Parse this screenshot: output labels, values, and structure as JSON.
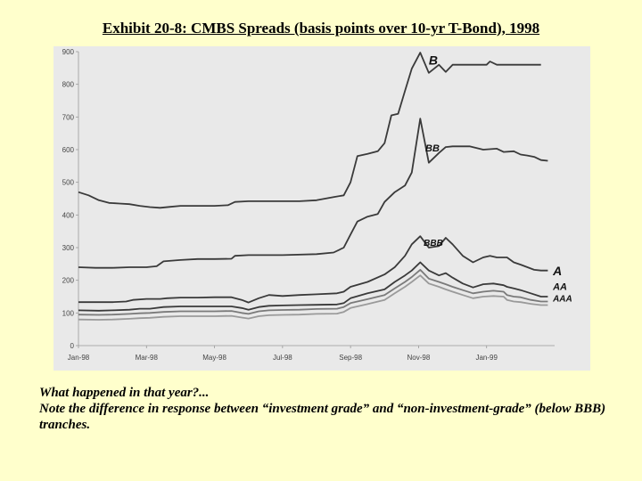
{
  "title": "Exhibit 20-8: CMBS Spreads (basis points over 10-yr T-Bond), 1998",
  "caption": {
    "line1": "What happened in that year?...",
    "line2": "Note the difference in response between “investment grade” and “non-investment-grade” (below BBB) tranches."
  },
  "chart_data": {
    "type": "line",
    "title": "",
    "xlabel": "",
    "ylabel": "",
    "ylim": [
      0,
      900
    ],
    "yticks": [
      0,
      100,
      200,
      300,
      400,
      500,
      600,
      700,
      800,
      900
    ],
    "xlim": [
      0,
      14
    ],
    "xticks": [
      {
        "label": "Jan-98",
        "x": 0
      },
      {
        "label": "Mar-98",
        "x": 2
      },
      {
        "label": "May-98",
        "x": 4
      },
      {
        "label": "Jul-98",
        "x": 6
      },
      {
        "label": "Sep-98",
        "x": 8
      },
      {
        "label": "Nov-98",
        "x": 10
      },
      {
        "label": "Jan-99",
        "x": 12
      }
    ],
    "series": [
      {
        "name": "B",
        "label_pos": [
          10.3,
          860
        ],
        "points": [
          [
            0,
            470
          ],
          [
            0.3,
            460
          ],
          [
            0.6,
            445
          ],
          [
            0.9,
            437
          ],
          [
            1.2,
            435
          ],
          [
            1.5,
            433
          ],
          [
            1.8,
            428
          ],
          [
            2.1,
            424
          ],
          [
            2.4,
            422
          ],
          [
            2.7,
            425
          ],
          [
            3.0,
            428
          ],
          [
            3.6,
            428
          ],
          [
            4.0,
            428
          ],
          [
            4.4,
            430
          ],
          [
            4.6,
            440
          ],
          [
            5.0,
            442
          ],
          [
            5.5,
            442
          ],
          [
            6.0,
            442
          ],
          [
            6.5,
            442
          ],
          [
            7.0,
            445
          ],
          [
            7.5,
            455
          ],
          [
            7.8,
            460
          ],
          [
            8.0,
            500
          ],
          [
            8.2,
            580
          ],
          [
            8.5,
            587
          ],
          [
            8.8,
            595
          ],
          [
            9.0,
            620
          ],
          [
            9.2,
            705
          ],
          [
            9.4,
            710
          ],
          [
            9.6,
            780
          ],
          [
            9.8,
            848
          ],
          [
            10.05,
            897
          ],
          [
            10.3,
            835
          ],
          [
            10.6,
            860
          ],
          [
            10.8,
            838
          ],
          [
            11.0,
            860
          ],
          [
            11.5,
            860
          ],
          [
            12.0,
            860
          ],
          [
            12.1,
            870
          ],
          [
            12.3,
            860
          ],
          [
            13.0,
            860
          ],
          [
            13.6,
            860
          ]
        ]
      },
      {
        "name": "BB",
        "label_pos": [
          10.2,
          595
        ],
        "points": [
          [
            0,
            240
          ],
          [
            0.5,
            238
          ],
          [
            1.0,
            238
          ],
          [
            1.5,
            240
          ],
          [
            2.0,
            240
          ],
          [
            2.3,
            243
          ],
          [
            2.5,
            258
          ],
          [
            3.0,
            262
          ],
          [
            3.5,
            265
          ],
          [
            4.0,
            265
          ],
          [
            4.5,
            266
          ],
          [
            4.6,
            275
          ],
          [
            5.0,
            277
          ],
          [
            6.0,
            277
          ],
          [
            7.0,
            280
          ],
          [
            7.5,
            285
          ],
          [
            7.8,
            300
          ],
          [
            8.0,
            340
          ],
          [
            8.2,
            380
          ],
          [
            8.5,
            395
          ],
          [
            8.8,
            403
          ],
          [
            9.0,
            440
          ],
          [
            9.3,
            470
          ],
          [
            9.6,
            490
          ],
          [
            9.8,
            530
          ],
          [
            10.05,
            695
          ],
          [
            10.3,
            560
          ],
          [
            10.6,
            590
          ],
          [
            10.8,
            608
          ],
          [
            11.0,
            610
          ],
          [
            11.5,
            610
          ],
          [
            11.9,
            600
          ],
          [
            12.3,
            603
          ],
          [
            12.5,
            593
          ],
          [
            12.8,
            595
          ],
          [
            13.0,
            585
          ],
          [
            13.2,
            582
          ],
          [
            13.4,
            578
          ],
          [
            13.6,
            568
          ],
          [
            13.8,
            566
          ]
        ]
      },
      {
        "name": "BBB",
        "label_pos": [
          10.15,
          305
        ],
        "points": [
          [
            0,
            133
          ],
          [
            0.5,
            133
          ],
          [
            1.0,
            133
          ],
          [
            1.4,
            135
          ],
          [
            1.6,
            140
          ],
          [
            2.0,
            143
          ],
          [
            2.4,
            143
          ],
          [
            2.6,
            145
          ],
          [
            3.0,
            147
          ],
          [
            3.5,
            147
          ],
          [
            4.0,
            148
          ],
          [
            4.5,
            148
          ],
          [
            4.8,
            140
          ],
          [
            5.0,
            132
          ],
          [
            5.3,
            145
          ],
          [
            5.6,
            155
          ],
          [
            6.0,
            152
          ],
          [
            6.5,
            155
          ],
          [
            7.0,
            157
          ],
          [
            7.6,
            160
          ],
          [
            7.8,
            165
          ],
          [
            8.0,
            180
          ],
          [
            8.5,
            195
          ],
          [
            9.0,
            218
          ],
          [
            9.3,
            240
          ],
          [
            9.6,
            275
          ],
          [
            9.8,
            310
          ],
          [
            10.05,
            335
          ],
          [
            10.3,
            300
          ],
          [
            10.6,
            305
          ],
          [
            10.8,
            330
          ],
          [
            11.0,
            310
          ],
          [
            11.3,
            275
          ],
          [
            11.6,
            255
          ],
          [
            11.9,
            270
          ],
          [
            12.1,
            275
          ],
          [
            12.3,
            270
          ],
          [
            12.6,
            270
          ],
          [
            12.8,
            255
          ],
          [
            13.0,
            248
          ],
          [
            13.2,
            240
          ],
          [
            13.4,
            232
          ],
          [
            13.6,
            230
          ],
          [
            13.8,
            230
          ]
        ]
      },
      {
        "name": "A",
        "label_pos": [
          13.95,
          215
        ],
        "points": [
          [
            0,
            108
          ],
          [
            0.6,
            107
          ],
          [
            1.0,
            108
          ],
          [
            1.5,
            110
          ],
          [
            1.8,
            113
          ],
          [
            2.1,
            113
          ],
          [
            2.5,
            118
          ],
          [
            3.0,
            120
          ],
          [
            3.5,
            120
          ],
          [
            4.0,
            120
          ],
          [
            4.5,
            120
          ],
          [
            4.8,
            115
          ],
          [
            5.0,
            110
          ],
          [
            5.3,
            118
          ],
          [
            5.6,
            122
          ],
          [
            6.0,
            123
          ],
          [
            6.5,
            124
          ],
          [
            7.0,
            125
          ],
          [
            7.6,
            126
          ],
          [
            7.8,
            130
          ],
          [
            8.0,
            145
          ],
          [
            8.5,
            160
          ],
          [
            9.0,
            172
          ],
          [
            9.3,
            195
          ],
          [
            9.6,
            215
          ],
          [
            9.8,
            230
          ],
          [
            10.05,
            255
          ],
          [
            10.3,
            230
          ],
          [
            10.6,
            215
          ],
          [
            10.8,
            222
          ],
          [
            11.0,
            208
          ],
          [
            11.3,
            190
          ],
          [
            11.6,
            178
          ],
          [
            11.9,
            188
          ],
          [
            12.2,
            190
          ],
          [
            12.5,
            185
          ],
          [
            12.6,
            180
          ],
          [
            12.8,
            175
          ],
          [
            13.0,
            170
          ],
          [
            13.3,
            160
          ],
          [
            13.6,
            150
          ],
          [
            13.8,
            150
          ]
        ]
      },
      {
        "name": "AA",
        "label_pos": [
          13.95,
          170
        ],
        "points": [
          [
            0,
            95
          ],
          [
            0.6,
            94
          ],
          [
            1.0,
            95
          ],
          [
            1.5,
            97
          ],
          [
            1.8,
            99
          ],
          [
            2.1,
            100
          ],
          [
            2.5,
            103
          ],
          [
            3.0,
            105
          ],
          [
            3.5,
            105
          ],
          [
            4.0,
            105
          ],
          [
            4.5,
            106
          ],
          [
            4.8,
            100
          ],
          [
            5.0,
            97
          ],
          [
            5.3,
            105
          ],
          [
            5.6,
            108
          ],
          [
            6.0,
            109
          ],
          [
            6.5,
            110
          ],
          [
            7.0,
            112
          ],
          [
            7.6,
            113
          ],
          [
            7.8,
            118
          ],
          [
            8.0,
            130
          ],
          [
            8.5,
            142
          ],
          [
            9.0,
            155
          ],
          [
            9.3,
            175
          ],
          [
            9.6,
            195
          ],
          [
            9.8,
            210
          ],
          [
            10.05,
            232
          ],
          [
            10.3,
            205
          ],
          [
            10.6,
            195
          ],
          [
            10.8,
            188
          ],
          [
            11.0,
            180
          ],
          [
            11.3,
            170
          ],
          [
            11.6,
            160
          ],
          [
            11.9,
            165
          ],
          [
            12.2,
            168
          ],
          [
            12.5,
            165
          ],
          [
            12.6,
            155
          ],
          [
            12.8,
            150
          ],
          [
            13.0,
            148
          ],
          [
            13.3,
            140
          ],
          [
            13.6,
            135
          ],
          [
            13.8,
            135
          ]
        ]
      },
      {
        "name": "AAA",
        "label_pos": [
          13.95,
          135
        ],
        "points": [
          [
            0,
            80
          ],
          [
            0.6,
            79
          ],
          [
            1.0,
            80
          ],
          [
            1.5,
            82
          ],
          [
            1.8,
            84
          ],
          [
            2.1,
            85
          ],
          [
            2.5,
            88
          ],
          [
            3.0,
            90
          ],
          [
            3.5,
            90
          ],
          [
            4.0,
            90
          ],
          [
            4.5,
            91
          ],
          [
            4.8,
            86
          ],
          [
            5.0,
            83
          ],
          [
            5.3,
            90
          ],
          [
            5.6,
            93
          ],
          [
            6.0,
            94
          ],
          [
            6.5,
            95
          ],
          [
            7.0,
            97
          ],
          [
            7.6,
            98
          ],
          [
            7.8,
            103
          ],
          [
            8.0,
            115
          ],
          [
            8.5,
            127
          ],
          [
            9.0,
            140
          ],
          [
            9.3,
            160
          ],
          [
            9.6,
            180
          ],
          [
            9.8,
            195
          ],
          [
            10.05,
            215
          ],
          [
            10.3,
            190
          ],
          [
            10.6,
            180
          ],
          [
            10.8,
            172
          ],
          [
            11.0,
            165
          ],
          [
            11.3,
            155
          ],
          [
            11.6,
            145
          ],
          [
            11.9,
            150
          ],
          [
            12.2,
            152
          ],
          [
            12.5,
            150
          ],
          [
            12.6,
            140
          ],
          [
            12.8,
            135
          ],
          [
            13.0,
            133
          ],
          [
            13.3,
            128
          ],
          [
            13.6,
            124
          ],
          [
            13.8,
            124
          ]
        ]
      }
    ],
    "colors": {
      "B": "#3a3a3a",
      "BB": "#3a3a3a",
      "BBB": "#3a3a3a",
      "A": "#3a3a3a",
      "AA": "#7a7a7a",
      "AAA": "#9a9a9a"
    }
  }
}
